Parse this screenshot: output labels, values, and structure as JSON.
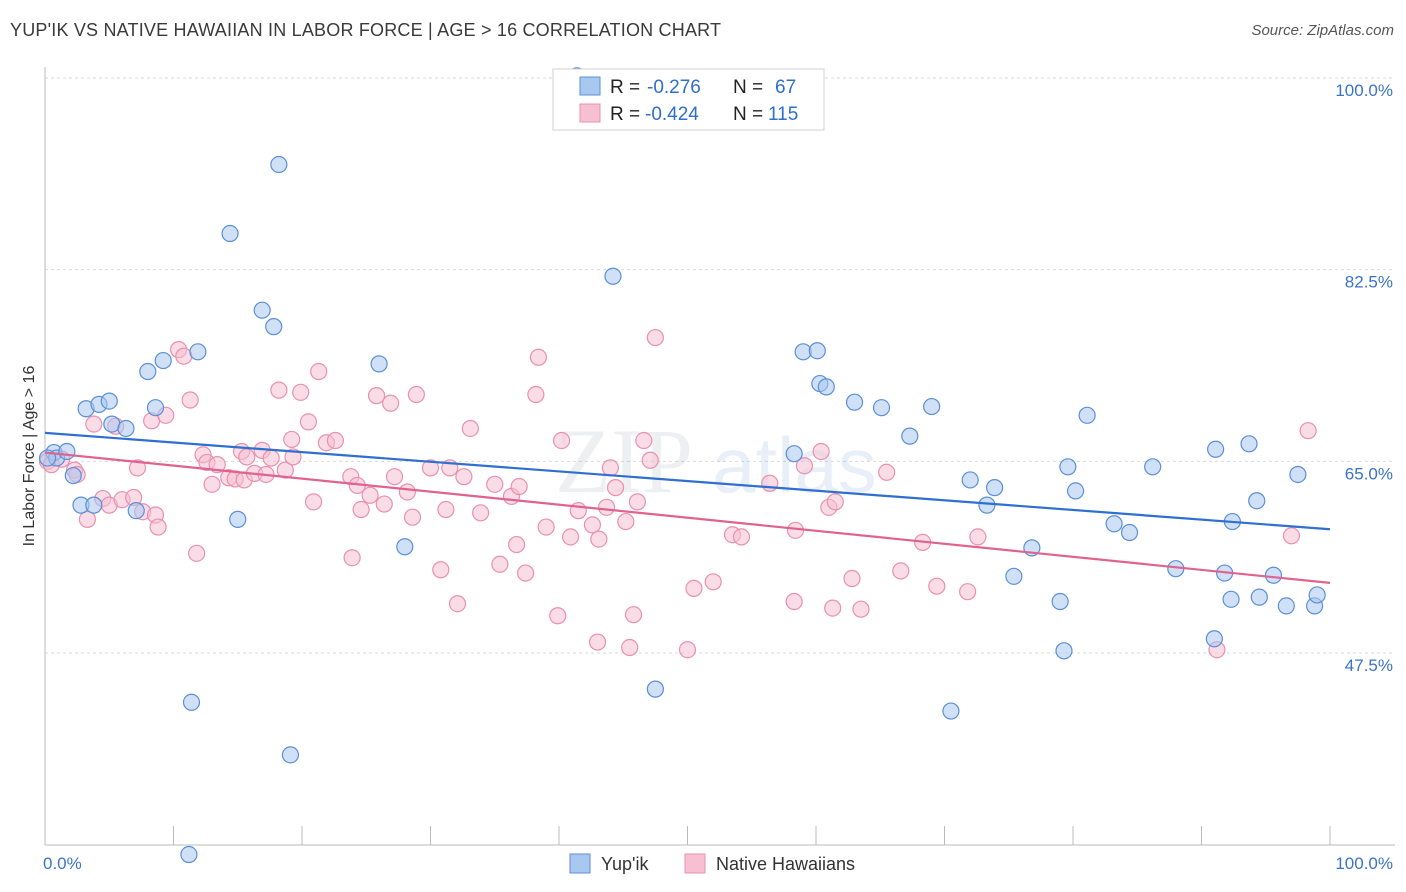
{
  "title": "YUP'IK VS NATIVE HAWAIIAN IN LABOR FORCE | AGE > 16 CORRELATION CHART",
  "source": "Source: ZipAtlas.com",
  "watermark": "ZIPatlas",
  "colors": {
    "blue_fill": "#a9c8f0",
    "blue_stroke": "#5b8fd6",
    "blue_line": "#2e6fd0",
    "pink_fill": "#f6c0d2",
    "pink_stroke": "#e990b0",
    "pink_line": "#e0628e",
    "grid": "#d9d9d9",
    "tick_text": "#3b73c8"
  },
  "legend_box": {
    "rows": [
      {
        "r_label": "R =",
        "r_value": "-0.276",
        "n_label": "N =",
        "n_value": "67",
        "series": "yupik"
      },
      {
        "r_label": "R =",
        "r_value": "-0.424",
        "n_label": "N =",
        "n_value": "115",
        "series": "hawaiian"
      }
    ]
  },
  "chart_data": {
    "type": "scatter",
    "title": "YUP'IK VS NATIVE HAWAIIAN IN LABOR FORCE | AGE > 16 CORRELATION CHART",
    "xlabel": "",
    "ylabel": "In Labor Force | Age > 16",
    "xlim": [
      0,
      100
    ],
    "ylim": [
      30.5,
      102
    ],
    "x_tick_labels": [
      "0.0%",
      "100.0%"
    ],
    "y_ticks": [
      47.5,
      65.0,
      82.5,
      100.0
    ],
    "y_tick_labels": [
      "47.5%",
      "65.0%",
      "82.5%",
      "100.0%"
    ],
    "legend": [
      "Yup'ik",
      "Native Hawaiians"
    ],
    "series": [
      {
        "name": "Yup'ik",
        "r": -0.276,
        "n": 67,
        "trend": {
          "x": [
            0,
            100
          ],
          "y": [
            67.6,
            58.8
          ]
        },
        "points": [
          [
            0.7,
            65.8
          ],
          [
            0.9,
            65.3
          ],
          [
            1.7,
            65.9
          ],
          [
            2.2,
            63.7
          ],
          [
            2.8,
            61.0
          ],
          [
            3.2,
            69.8
          ],
          [
            3.8,
            61.0
          ],
          [
            4.2,
            70.2
          ],
          [
            5.0,
            70.5
          ],
          [
            5.2,
            68.4
          ],
          [
            6.3,
            68.0
          ],
          [
            7.1,
            60.5
          ],
          [
            8.0,
            73.2
          ],
          [
            8.6,
            69.9
          ],
          [
            9.2,
            74.2
          ],
          [
            11.4,
            43.0
          ],
          [
            11.9,
            75.0
          ],
          [
            14.4,
            85.8
          ],
          [
            15.0,
            59.7
          ],
          [
            16.9,
            78.8
          ],
          [
            17.8,
            77.3
          ],
          [
            18.2,
            92.1
          ],
          [
            19.1,
            38.2
          ],
          [
            26.0,
            73.9
          ],
          [
            28.0,
            57.2
          ],
          [
            41.4,
            100.2
          ],
          [
            44.2,
            81.9
          ],
          [
            47.5,
            44.2
          ],
          [
            58.3,
            65.7
          ],
          [
            59.0,
            75.0
          ],
          [
            60.1,
            75.1
          ],
          [
            60.3,
            72.1
          ],
          [
            60.8,
            71.8
          ],
          [
            63.0,
            70.4
          ],
          [
            65.1,
            69.9
          ],
          [
            67.3,
            67.3
          ],
          [
            69.0,
            70.0
          ],
          [
            70.5,
            42.2
          ],
          [
            72.0,
            63.3
          ],
          [
            73.3,
            61.0
          ],
          [
            73.9,
            62.6
          ],
          [
            75.4,
            54.5
          ],
          [
            76.8,
            57.1
          ],
          [
            79.0,
            52.2
          ],
          [
            79.3,
            47.7
          ],
          [
            79.6,
            64.5
          ],
          [
            80.2,
            62.3
          ],
          [
            81.1,
            69.2
          ],
          [
            83.2,
            59.3
          ],
          [
            84.4,
            58.5
          ],
          [
            86.2,
            64.5
          ],
          [
            88.0,
            55.2
          ],
          [
            91.0,
            48.8
          ],
          [
            91.1,
            66.1
          ],
          [
            91.8,
            54.8
          ],
          [
            92.3,
            52.4
          ],
          [
            92.4,
            59.5
          ],
          [
            93.7,
            66.6
          ],
          [
            94.3,
            61.4
          ],
          [
            94.5,
            52.6
          ],
          [
            95.6,
            54.6
          ],
          [
            96.6,
            51.8
          ],
          [
            97.5,
            63.8
          ],
          [
            98.8,
            51.8
          ],
          [
            99.0,
            52.8
          ],
          [
            0.2,
            65.3
          ],
          [
            11.2,
            29.1
          ]
        ]
      },
      {
        "name": "Native Hawaiians",
        "r": -0.424,
        "n": 115,
        "trend": {
          "x": [
            0,
            100
          ],
          "y": [
            65.8,
            53.9
          ]
        },
        "points": [
          [
            0.2,
            65.0
          ],
          [
            0.5,
            64.7
          ],
          [
            1.3,
            65.2
          ],
          [
            2.3,
            64.2
          ],
          [
            2.5,
            63.8
          ],
          [
            3.3,
            59.7
          ],
          [
            3.8,
            68.4
          ],
          [
            4.5,
            61.6
          ],
          [
            5.0,
            61.0
          ],
          [
            5.5,
            68.2
          ],
          [
            6.0,
            61.5
          ],
          [
            6.9,
            61.7
          ],
          [
            7.2,
            64.4
          ],
          [
            7.6,
            60.4
          ],
          [
            8.3,
            68.7
          ],
          [
            8.6,
            60.1
          ],
          [
            8.8,
            59.0
          ],
          [
            9.4,
            69.2
          ],
          [
            10.4,
            75.2
          ],
          [
            10.8,
            74.6
          ],
          [
            11.3,
            70.6
          ],
          [
            11.8,
            56.6
          ],
          [
            12.3,
            65.6
          ],
          [
            12.6,
            64.9
          ],
          [
            13.0,
            62.9
          ],
          [
            13.4,
            64.7
          ],
          [
            14.3,
            63.5
          ],
          [
            14.8,
            63.4
          ],
          [
            15.3,
            65.9
          ],
          [
            15.5,
            63.3
          ],
          [
            15.7,
            65.4
          ],
          [
            16.3,
            63.9
          ],
          [
            16.9,
            66.0
          ],
          [
            17.2,
            63.8
          ],
          [
            17.6,
            65.3
          ],
          [
            18.2,
            71.5
          ],
          [
            18.7,
            64.2
          ],
          [
            19.2,
            67.0
          ],
          [
            19.3,
            65.4
          ],
          [
            19.9,
            71.3
          ],
          [
            20.5,
            68.6
          ],
          [
            20.9,
            61.3
          ],
          [
            21.3,
            73.2
          ],
          [
            21.9,
            66.7
          ],
          [
            22.6,
            66.9
          ],
          [
            23.8,
            63.6
          ],
          [
            23.9,
            56.2
          ],
          [
            24.3,
            62.8
          ],
          [
            24.6,
            60.6
          ],
          [
            25.3,
            61.9
          ],
          [
            25.8,
            71.0
          ],
          [
            26.4,
            61.1
          ],
          [
            26.9,
            70.3
          ],
          [
            27.2,
            63.6
          ],
          [
            28.2,
            62.2
          ],
          [
            28.6,
            59.9
          ],
          [
            28.9,
            71.1
          ],
          [
            30.0,
            64.4
          ],
          [
            30.8,
            55.1
          ],
          [
            31.2,
            60.6
          ],
          [
            31.5,
            64.4
          ],
          [
            32.1,
            52.0
          ],
          [
            32.6,
            63.6
          ],
          [
            33.1,
            68.0
          ],
          [
            33.9,
            60.3
          ],
          [
            35.0,
            62.9
          ],
          [
            35.4,
            55.6
          ],
          [
            36.3,
            61.8
          ],
          [
            36.7,
            57.4
          ],
          [
            36.9,
            62.7
          ],
          [
            37.4,
            54.8
          ],
          [
            38.2,
            71.1
          ],
          [
            38.4,
            74.5
          ],
          [
            39.0,
            59.0
          ],
          [
            39.9,
            50.9
          ],
          [
            40.2,
            66.9
          ],
          [
            40.9,
            58.1
          ],
          [
            41.5,
            60.5
          ],
          [
            42.6,
            59.2
          ],
          [
            43.0,
            48.5
          ],
          [
            43.1,
            57.9
          ],
          [
            43.7,
            60.8
          ],
          [
            44.0,
            64.4
          ],
          [
            44.4,
            62.6
          ],
          [
            45.2,
            59.5
          ],
          [
            45.5,
            48.0
          ],
          [
            45.8,
            51.0
          ],
          [
            46.1,
            61.3
          ],
          [
            46.6,
            66.9
          ],
          [
            47.1,
            65.1
          ],
          [
            47.5,
            76.3
          ],
          [
            50.0,
            47.8
          ],
          [
            50.5,
            53.4
          ],
          [
            52.0,
            54.0
          ],
          [
            53.5,
            58.3
          ],
          [
            54.2,
            58.1
          ],
          [
            56.4,
            63.0
          ],
          [
            58.3,
            52.2
          ],
          [
            58.4,
            58.7
          ],
          [
            59.1,
            64.6
          ],
          [
            60.4,
            65.9
          ],
          [
            61.0,
            60.8
          ],
          [
            61.3,
            51.6
          ],
          [
            61.5,
            61.3
          ],
          [
            62.8,
            54.3
          ],
          [
            63.5,
            51.5
          ],
          [
            65.5,
            64.0
          ],
          [
            66.6,
            55.0
          ],
          [
            68.3,
            57.6
          ],
          [
            69.4,
            53.6
          ],
          [
            71.8,
            53.1
          ],
          [
            72.6,
            58.1
          ],
          [
            97.0,
            58.2
          ],
          [
            98.3,
            67.8
          ],
          [
            91.2,
            47.8
          ]
        ]
      }
    ]
  },
  "bottom_legend": [
    {
      "label": "Yup'ik",
      "series": "yupik"
    },
    {
      "label": "Native Hawaiians",
      "series": "hawaiian"
    }
  ]
}
